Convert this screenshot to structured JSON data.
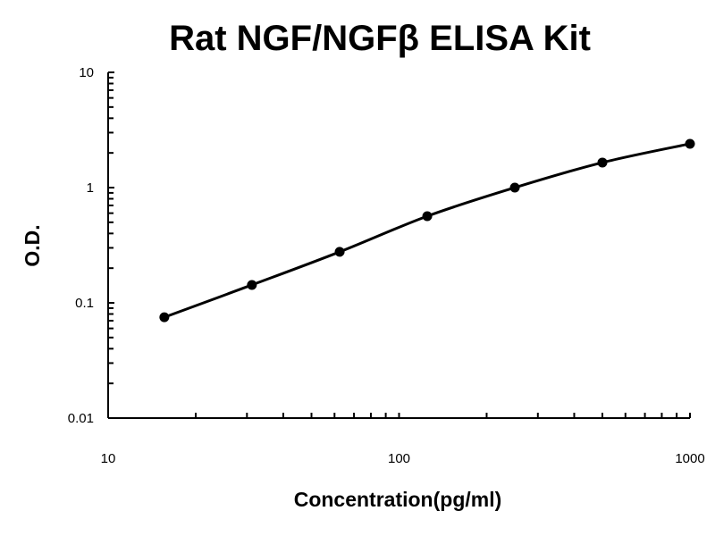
{
  "chart_data": {
    "type": "line",
    "title": "Rat NGF/NGFβ ELISA Kit",
    "xlabel": "Concentration(pg/ml)",
    "ylabel": "O.D.",
    "xscale": "log",
    "yscale": "log",
    "xlim": [
      10,
      1000
    ],
    "ylim": [
      0.01,
      10
    ],
    "xticks": [
      "10",
      "100",
      "1000"
    ],
    "yticks": [
      "0.01",
      "0.1",
      "1",
      "10"
    ],
    "grid": false,
    "legend": "none",
    "line_color": "#000000",
    "marker": "circle",
    "series": [
      {
        "x": [
          15.6,
          31.2,
          62.5,
          125,
          250,
          500,
          1000
        ],
        "y": [
          0.075,
          0.143,
          0.277,
          0.565,
          1.0,
          1.65,
          2.4
        ]
      }
    ]
  }
}
